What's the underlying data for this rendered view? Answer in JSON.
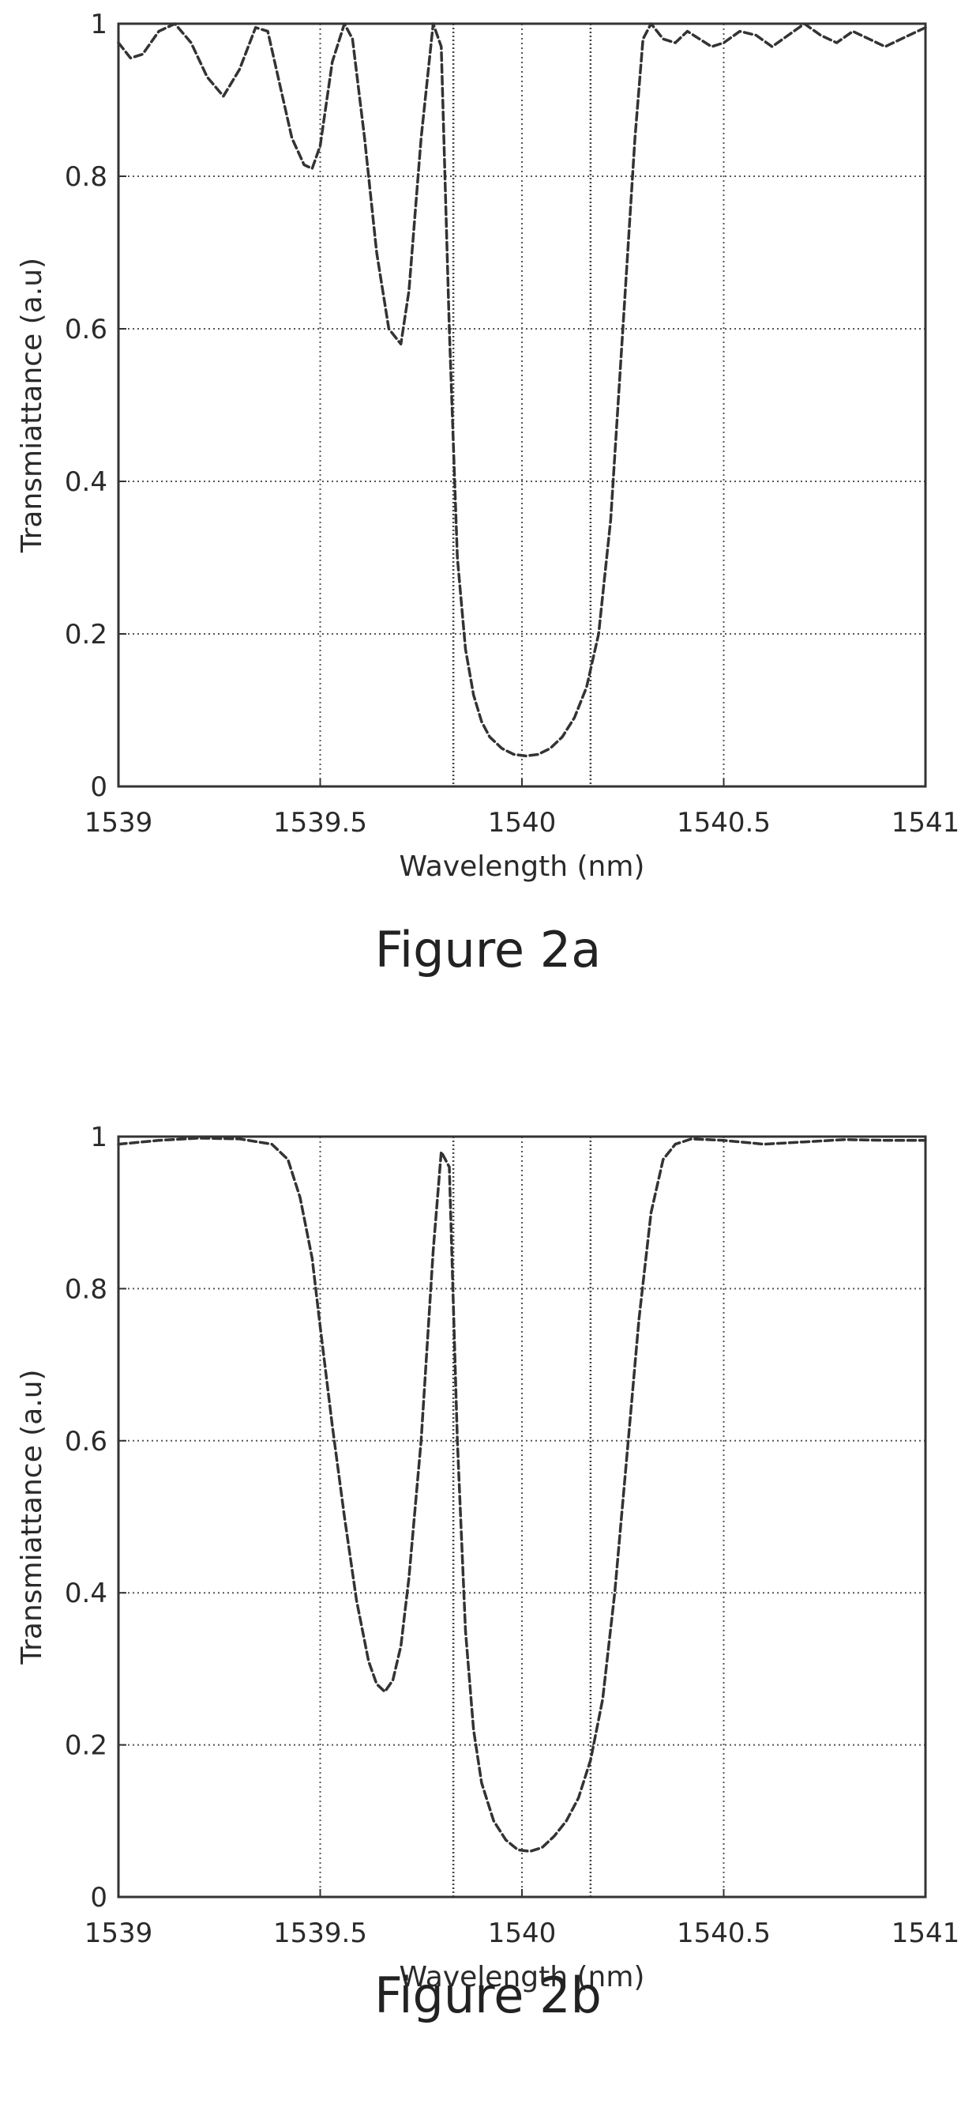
{
  "chart_data": [
    {
      "type": "line",
      "caption": "Figure 2a",
      "xlabel": "Wavelength (nm)",
      "ylabel": "Transmiattance (a.u)",
      "xlim": [
        1539,
        1541
      ],
      "ylim": [
        0,
        1
      ],
      "xticks": [
        "1539",
        "1539.5",
        "1540",
        "1540.5",
        "1541"
      ],
      "yticks": [
        "0",
        "0.2",
        "0.4",
        "0.6",
        "0.8",
        "1"
      ],
      "xtick_values": [
        1539,
        1539.5,
        1540,
        1540.5,
        1541
      ],
      "ytick_values": [
        0,
        0.2,
        0.4,
        0.6,
        0.8,
        1
      ],
      "extra_vlines": [
        1539.83,
        1540.17
      ],
      "grid": true,
      "line_style": "dashed",
      "line_color": "#333333",
      "series": [
        {
          "x": [
            1539.0,
            1539.03,
            1539.06,
            1539.1,
            1539.14,
            1539.18,
            1539.22,
            1539.26,
            1539.3,
            1539.34,
            1539.37,
            1539.4,
            1539.43,
            1539.46,
            1539.48,
            1539.5,
            1539.53,
            1539.56,
            1539.58,
            1539.61,
            1539.64,
            1539.67,
            1539.7,
            1539.72,
            1539.75,
            1539.78,
            1539.8,
            1539.82,
            1539.84,
            1539.86,
            1539.88,
            1539.9,
            1539.92,
            1539.95,
            1539.98,
            1540.01,
            1540.04,
            1540.07,
            1540.1,
            1540.13,
            1540.16,
            1540.19,
            1540.22,
            1540.25,
            1540.28,
            1540.3,
            1540.32,
            1540.35,
            1540.38,
            1540.41,
            1540.44,
            1540.47,
            1540.5,
            1540.54,
            1540.58,
            1540.62,
            1540.66,
            1540.7,
            1540.74,
            1540.78,
            1540.82,
            1540.86,
            1540.9,
            1540.94,
            1540.98,
            1541.0
          ],
          "y": [
            0.975,
            0.955,
            0.96,
            0.99,
            1.0,
            0.975,
            0.93,
            0.905,
            0.94,
            0.995,
            0.99,
            0.92,
            0.85,
            0.815,
            0.81,
            0.84,
            0.95,
            1.0,
            0.98,
            0.85,
            0.7,
            0.6,
            0.58,
            0.65,
            0.85,
            1.0,
            0.97,
            0.6,
            0.3,
            0.18,
            0.12,
            0.085,
            0.065,
            0.05,
            0.042,
            0.04,
            0.042,
            0.05,
            0.065,
            0.09,
            0.13,
            0.2,
            0.35,
            0.6,
            0.85,
            0.98,
            1.0,
            0.98,
            0.975,
            0.99,
            0.98,
            0.97,
            0.975,
            0.99,
            0.985,
            0.97,
            0.985,
            1.0,
            0.985,
            0.975,
            0.99,
            0.98,
            0.97,
            0.98,
            0.99,
            0.995
          ]
        }
      ]
    },
    {
      "type": "line",
      "caption": "Figure 2b",
      "xlabel": "Wavelength (nm)",
      "ylabel": "Transmiattance (a.u)",
      "xlim": [
        1539,
        1541
      ],
      "ylim": [
        0,
        1
      ],
      "xticks": [
        "1539",
        "1539.5",
        "1540",
        "1540.5",
        "1541"
      ],
      "yticks": [
        "0",
        "0.2",
        "0.4",
        "0.6",
        "0.8",
        "1"
      ],
      "xtick_values": [
        1539,
        1539.5,
        1540,
        1540.5,
        1541
      ],
      "ytick_values": [
        0,
        0.2,
        0.4,
        0.6,
        0.8,
        1
      ],
      "extra_vlines": [
        1539.83,
        1540.17
      ],
      "grid": true,
      "line_style": "dashed",
      "line_color": "#333333",
      "series": [
        {
          "x": [
            1539.0,
            1539.1,
            1539.2,
            1539.3,
            1539.38,
            1539.42,
            1539.45,
            1539.48,
            1539.5,
            1539.53,
            1539.56,
            1539.59,
            1539.62,
            1539.64,
            1539.66,
            1539.68,
            1539.7,
            1539.72,
            1539.75,
            1539.78,
            1539.8,
            1539.82,
            1539.84,
            1539.86,
            1539.88,
            1539.9,
            1539.93,
            1539.96,
            1539.99,
            1540.02,
            1540.05,
            1540.08,
            1540.11,
            1540.14,
            1540.17,
            1540.2,
            1540.23,
            1540.26,
            1540.29,
            1540.32,
            1540.35,
            1540.38,
            1540.42,
            1540.5,
            1540.6,
            1540.7,
            1540.8,
            1540.9,
            1541.0
          ],
          "y": [
            0.99,
            0.995,
            0.998,
            0.997,
            0.99,
            0.97,
            0.92,
            0.84,
            0.75,
            0.62,
            0.5,
            0.39,
            0.31,
            0.28,
            0.27,
            0.285,
            0.33,
            0.42,
            0.6,
            0.85,
            0.98,
            0.96,
            0.6,
            0.35,
            0.22,
            0.15,
            0.1,
            0.075,
            0.062,
            0.06,
            0.065,
            0.08,
            0.1,
            0.13,
            0.18,
            0.26,
            0.4,
            0.58,
            0.76,
            0.9,
            0.97,
            0.99,
            0.997,
            0.995,
            0.99,
            0.993,
            0.996,
            0.995,
            0.995
          ]
        }
      ]
    }
  ]
}
